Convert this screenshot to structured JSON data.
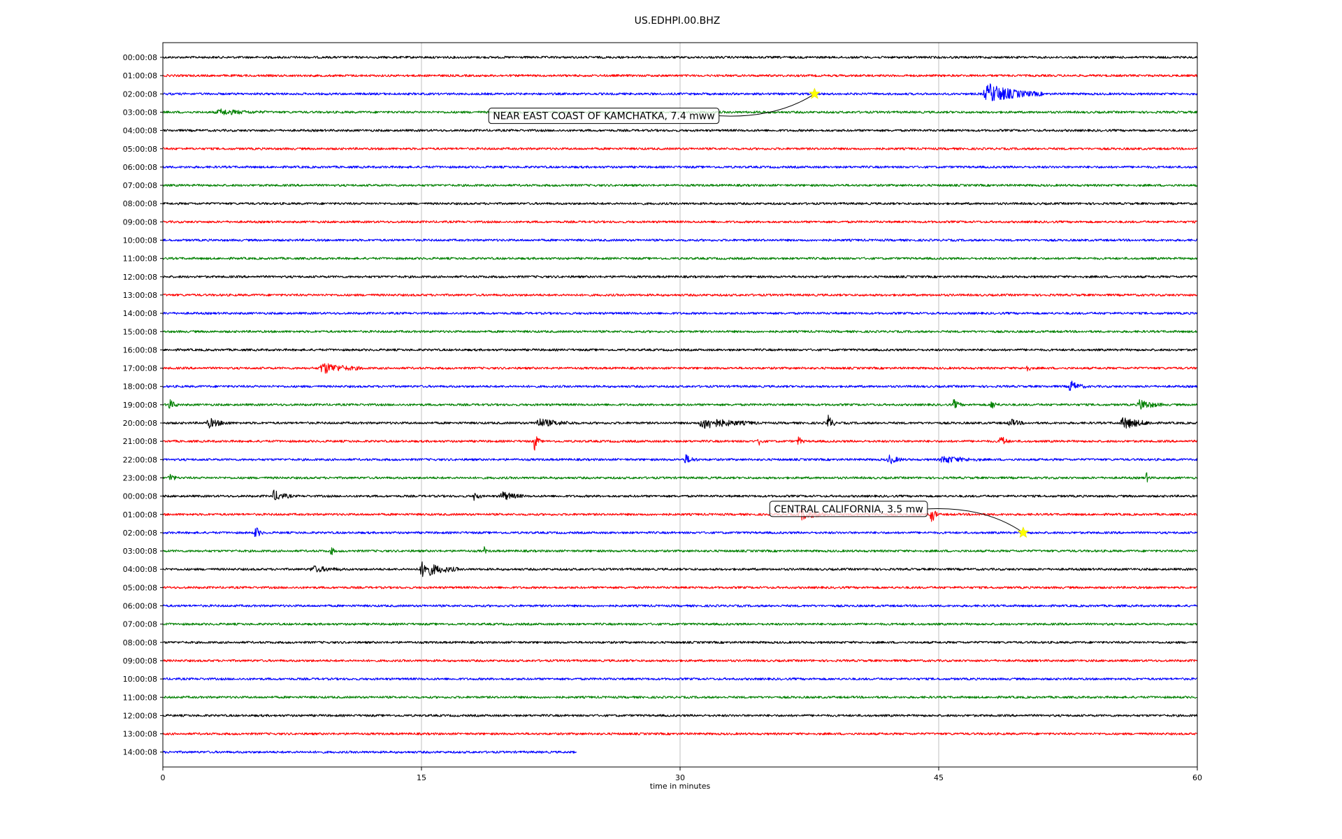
{
  "chart_data": {
    "type": "line",
    "title": "US.EDHPI.00.BHZ",
    "xlabel": "time in minutes",
    "xlim": [
      0,
      60
    ],
    "x_ticks": [
      0,
      15,
      30,
      45,
      60
    ],
    "x_tick_labels": [
      "0",
      "15",
      "30",
      "45",
      "60"
    ],
    "grid": "vertical",
    "color_cycle": [
      "#000000",
      "#ff0000",
      "#0000ff",
      "#008000"
    ],
    "row_labels": [
      "00:00:08",
      "01:00:08",
      "02:00:08",
      "03:00:08",
      "04:00:08",
      "05:00:08",
      "06:00:08",
      "07:00:08",
      "08:00:08",
      "09:00:08",
      "10:00:08",
      "11:00:08",
      "12:00:08",
      "13:00:08",
      "14:00:08",
      "15:00:08",
      "16:00:08",
      "17:00:08",
      "18:00:08",
      "19:00:08",
      "20:00:08",
      "21:00:08",
      "22:00:08",
      "23:00:08",
      "00:00:08",
      "01:00:08",
      "02:00:08",
      "03:00:08",
      "04:00:08",
      "05:00:08",
      "06:00:08",
      "07:00:08",
      "08:00:08",
      "09:00:08",
      "10:00:08",
      "11:00:08",
      "12:00:08",
      "13:00:08",
      "14:00:08"
    ],
    "last_row_end_minute": 24,
    "bursts": [
      {
        "row": 2,
        "minute": 47.5,
        "duration": 3.5,
        "amplitude": 1.0
      },
      {
        "row": 3,
        "minute": 3,
        "duration": 3,
        "amplitude": 0.25
      },
      {
        "row": 17,
        "minute": 9,
        "duration": 2.6,
        "amplitude": 0.55
      },
      {
        "row": 17,
        "minute": 50,
        "duration": 0.4,
        "amplitude": 0.5
      },
      {
        "row": 18,
        "minute": 52.5,
        "duration": 1,
        "amplitude": 0.6
      },
      {
        "row": 19,
        "minute": 0.3,
        "duration": 0.6,
        "amplitude": 0.55
      },
      {
        "row": 19,
        "minute": 45.8,
        "duration": 0.6,
        "amplitude": 0.5
      },
      {
        "row": 19,
        "minute": 48,
        "duration": 0.5,
        "amplitude": 0.5
      },
      {
        "row": 19,
        "minute": 56.5,
        "duration": 1.5,
        "amplitude": 0.55
      },
      {
        "row": 20,
        "minute": 2.5,
        "duration": 1.5,
        "amplitude": 0.45
      },
      {
        "row": 20,
        "minute": 21.5,
        "duration": 2.5,
        "amplitude": 0.4
      },
      {
        "row": 20,
        "minute": 31,
        "duration": 3.5,
        "amplitude": 0.55
      },
      {
        "row": 20,
        "minute": 38.5,
        "duration": 0.5,
        "amplitude": 1.0
      },
      {
        "row": 20,
        "minute": 49,
        "duration": 1,
        "amplitude": 0.4
      },
      {
        "row": 20,
        "minute": 55.5,
        "duration": 2,
        "amplitude": 0.6
      },
      {
        "row": 21,
        "minute": 21.5,
        "duration": 0.4,
        "amplitude": 1.0
      },
      {
        "row": 21,
        "minute": 34.5,
        "duration": 0.4,
        "amplitude": 0.5
      },
      {
        "row": 21,
        "minute": 36.8,
        "duration": 0.4,
        "amplitude": 0.5
      },
      {
        "row": 21,
        "minute": 48.5,
        "duration": 0.6,
        "amplitude": 0.7
      },
      {
        "row": 22,
        "minute": 30.2,
        "duration": 0.8,
        "amplitude": 0.5
      },
      {
        "row": 22,
        "minute": 42,
        "duration": 1,
        "amplitude": 0.45
      },
      {
        "row": 22,
        "minute": 45,
        "duration": 2.5,
        "amplitude": 0.35
      },
      {
        "row": 23,
        "minute": 0.3,
        "duration": 0.5,
        "amplitude": 0.55
      },
      {
        "row": 23,
        "minute": 57,
        "duration": 0.3,
        "amplitude": 0.55
      },
      {
        "row": 24,
        "minute": 6.3,
        "duration": 1.2,
        "amplitude": 0.55
      },
      {
        "row": 24,
        "minute": 18,
        "duration": 0.5,
        "amplitude": 0.5
      },
      {
        "row": 24,
        "minute": 19.5,
        "duration": 1.5,
        "amplitude": 0.45
      },
      {
        "row": 25,
        "minute": 36.8,
        "duration": 2,
        "amplitude": 0.5
      },
      {
        "row": 25,
        "minute": 44.5,
        "duration": 0.5,
        "amplitude": 1.0
      },
      {
        "row": 26,
        "minute": 5.3,
        "duration": 0.5,
        "amplitude": 0.7
      },
      {
        "row": 27,
        "minute": 9.7,
        "duration": 0.3,
        "amplitude": 0.6
      },
      {
        "row": 27,
        "minute": 18.6,
        "duration": 0.2,
        "amplitude": 0.5
      },
      {
        "row": 28,
        "minute": 8.5,
        "duration": 2,
        "amplitude": 0.3
      },
      {
        "row": 28,
        "minute": 14.8,
        "duration": 2.4,
        "amplitude": 0.8
      }
    ]
  },
  "annotations": [
    {
      "label": "NEAR EAST COAST OF KAMCHATKA, 7.4 mww",
      "row": 2,
      "minute": 37.8,
      "box_row": 3.2,
      "box_minute": 18.9
    },
    {
      "label": "CENTRAL CALIFORNIA, 3.5 mw",
      "row": 26,
      "minute": 49.9,
      "box_row": 24.7,
      "box_minute": 35.2
    }
  ]
}
